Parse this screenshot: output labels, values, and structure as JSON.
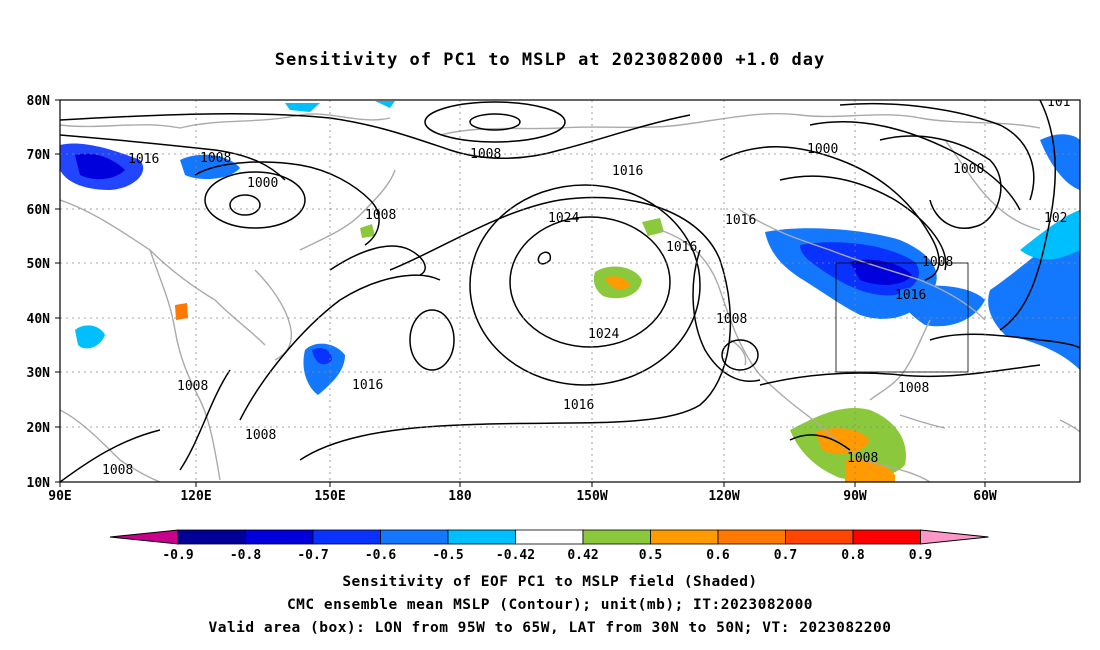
{
  "title": "Sensitivity of PC1 to MSLP at 2023082000 +1.0 day",
  "map": {
    "lon_ticks": [
      "90E",
      "120E",
      "150E",
      "180",
      "150W",
      "120W",
      "90W",
      "60W"
    ],
    "lat_ticks": [
      "80N",
      "70N",
      "60N",
      "50N",
      "40N",
      "30N",
      "20N",
      "10N"
    ],
    "contour_labels": [
      "1016",
      "1008",
      "1000",
      "1008",
      "1016",
      "1008",
      "1008",
      "1008",
      "1008",
      "1024",
      "1016",
      "1024",
      "1016",
      "1016",
      "1008",
      "1008",
      "1000",
      "1000",
      "1016",
      "1008",
      "1016",
      "1008",
      "101",
      "102"
    ],
    "box_label": "Valid area",
    "colors": {
      "land_outline": "#aaaaaa",
      "contour": "#000000",
      "grid": "#888888"
    }
  },
  "colorbar": {
    "labels": [
      "-0.9",
      "-0.8",
      "-0.7",
      "-0.6",
      "-0.5",
      "-0.42",
      "0.42",
      "0.5",
      "0.6",
      "0.7",
      "0.8",
      "0.9"
    ],
    "colors": [
      "#000096",
      "#0000dc",
      "#0a32ff",
      "#1478ff",
      "#00bfff",
      "#ffffff",
      "#8cc83c",
      "#ff9b00",
      "#ff7800",
      "#ff4600",
      "#ff0000"
    ],
    "end_low": "#c8008c",
    "end_high": "#ff96c8"
  },
  "captions": {
    "line1": "Sensitivity of EOF PC1 to MSLP field (Shaded)",
    "line2": "CMC ensemble mean MSLP (Contour); unit(mb); IT:2023082000",
    "line3": "Valid area (box): LON from 95W to 65W, LAT from 30N to 50N; VT: 2023082200"
  }
}
